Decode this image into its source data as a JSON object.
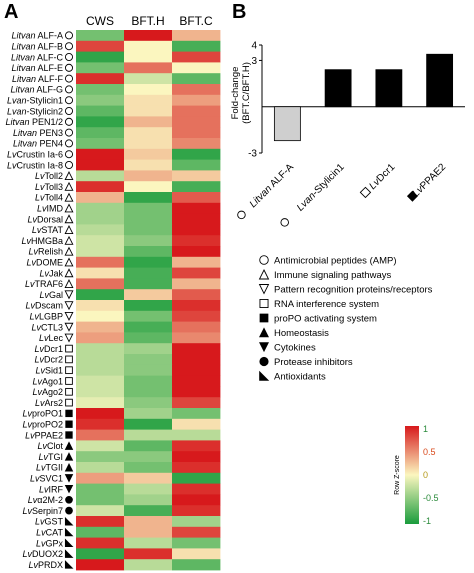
{
  "panel_labels": {
    "a": "A",
    "b": "B"
  },
  "chart_data": [
    {
      "type": "heatmap",
      "columns": [
        "CWS",
        "BFT.H",
        "BFT.C"
      ],
      "rows": [
        {
          "prefix": "Litvan",
          "name": " ALF-A",
          "icon": "circle",
          "values": [
            -0.6,
            1.0,
            0.3
          ]
        },
        {
          "prefix": "Litvan",
          "name": " ALF-B",
          "icon": "circle",
          "values": [
            0.8,
            0.0,
            -0.8
          ]
        },
        {
          "prefix": "Litvan",
          "name": " ALF-C",
          "icon": "circle",
          "values": [
            -0.9,
            0.0,
            0.8
          ]
        },
        {
          "prefix": "Litvan",
          "name": " ALF-E",
          "icon": "circle",
          "values": [
            -0.6,
            0.6,
            0.0
          ]
        },
        {
          "prefix": "Litvan",
          "name": " ALF-F",
          "icon": "circle",
          "values": [
            0.9,
            -0.2,
            -0.7
          ]
        },
        {
          "prefix": "Litvan",
          "name": " ALF-G",
          "icon": "circle",
          "values": [
            -0.6,
            0.0,
            0.6
          ]
        },
        {
          "prefix": "Lvan",
          "name": "-Stylicin1",
          "icon": "circle",
          "values": [
            -0.5,
            0.1,
            0.4
          ]
        },
        {
          "prefix": "Lvan",
          "name": "-Stylicin2",
          "icon": "circle",
          "values": [
            -0.7,
            0.1,
            0.6
          ]
        },
        {
          "prefix": "Litvan",
          "name": " PEN1/2",
          "icon": "circle",
          "values": [
            -0.9,
            0.3,
            0.6
          ]
        },
        {
          "prefix": "Litvan",
          "name": " PEN3",
          "icon": "circle",
          "values": [
            -0.7,
            0.1,
            0.6
          ]
        },
        {
          "prefix": "Litvan",
          "name": " PEN4",
          "icon": "circle",
          "values": [
            -0.6,
            0.1,
            0.5
          ]
        },
        {
          "prefix": "Lv",
          "name": "Crustin Ia-6",
          "icon": "circle",
          "values": [
            1.0,
            0.2,
            -0.9
          ]
        },
        {
          "prefix": "Lv",
          "name": "Crustin Ia-8",
          "icon": "circle",
          "values": [
            1.0,
            0.1,
            -0.7
          ]
        },
        {
          "prefix": "Lv",
          "name": "Toll2",
          "icon": "triangle-up",
          "values": [
            -0.3,
            0.3,
            0.2
          ]
        },
        {
          "prefix": "Lv",
          "name": "Toll3",
          "icon": "triangle-up",
          "values": [
            0.9,
            0.0,
            -0.8
          ]
        },
        {
          "prefix": "Lv",
          "name": "Toll4",
          "icon": "triangle-up",
          "values": [
            0.3,
            -0.9,
            0.7
          ]
        },
        {
          "prefix": "Lv",
          "name": "IMD",
          "icon": "triangle-up",
          "values": [
            -0.4,
            -0.6,
            1.0
          ]
        },
        {
          "prefix": "Lv",
          "name": "Dorsal",
          "icon": "triangle-up",
          "values": [
            -0.4,
            -0.6,
            1.0
          ]
        },
        {
          "prefix": "Lv",
          "name": "STAT",
          "icon": "triangle-up",
          "values": [
            -0.3,
            -0.6,
            1.0
          ]
        },
        {
          "prefix": "Lv",
          "name": "HMGBa",
          "icon": "triangle-up",
          "values": [
            -0.2,
            -0.5,
            0.9
          ]
        },
        {
          "prefix": "Lv",
          "name": "Relish",
          "icon": "triangle-up",
          "values": [
            -0.2,
            -0.7,
            1.0
          ]
        },
        {
          "prefix": "Lv",
          "name": "DOME",
          "icon": "triangle-up",
          "values": [
            0.6,
            -0.9,
            0.3
          ]
        },
        {
          "prefix": "Lv",
          "name": "Jak",
          "icon": "triangle-up",
          "values": [
            0.1,
            -0.8,
            0.8
          ]
        },
        {
          "prefix": "Lv",
          "name": "TRAF6",
          "icon": "triangle-up",
          "values": [
            0.6,
            -0.8,
            0.3
          ]
        },
        {
          "prefix": "Lv",
          "name": "Gal",
          "icon": "triangle-down",
          "values": [
            -0.9,
            0.2,
            0.7
          ]
        },
        {
          "prefix": "Lv",
          "name": "Dscam",
          "icon": "triangle-down",
          "values": [
            0.1,
            -0.9,
            0.9
          ]
        },
        {
          "prefix": "Lv",
          "name": "LGBP",
          "icon": "triangle-down",
          "values": [
            0.0,
            -0.6,
            0.8
          ]
        },
        {
          "prefix": "Lv",
          "name": "CTL3",
          "icon": "triangle-down",
          "values": [
            0.3,
            -0.8,
            0.6
          ]
        },
        {
          "prefix": "Lv",
          "name": "Lec",
          "icon": "triangle-down",
          "values": [
            0.4,
            -0.7,
            0.5
          ]
        },
        {
          "prefix": "Lv",
          "name": "Dcr1",
          "icon": "square-open",
          "values": [
            -0.3,
            -0.4,
            1.0
          ]
        },
        {
          "prefix": "Lv",
          "name": "Dcr2",
          "icon": "square-open",
          "values": [
            -0.3,
            -0.5,
            1.0
          ]
        },
        {
          "prefix": "Lv",
          "name": "Sid1",
          "icon": "square-open",
          "values": [
            -0.3,
            -0.5,
            1.0
          ]
        },
        {
          "prefix": "Lv",
          "name": "Ago1",
          "icon": "square-open",
          "values": [
            -0.2,
            -0.6,
            1.0
          ]
        },
        {
          "prefix": "Lv",
          "name": "Ago2",
          "icon": "square-open",
          "values": [
            -0.2,
            -0.6,
            1.0
          ]
        },
        {
          "prefix": "Lv",
          "name": "Ars2",
          "icon": "square-open",
          "values": [
            -0.1,
            -0.5,
            0.8
          ]
        },
        {
          "prefix": "Lv",
          "name": "proPO1",
          "icon": "square-filled",
          "values": [
            1.0,
            -0.4,
            -0.6
          ]
        },
        {
          "prefix": "Lv",
          "name": "proPO2",
          "icon": "square-filled",
          "values": [
            0.9,
            -0.9,
            0.1
          ]
        },
        {
          "prefix": "Lv",
          "name": "PPAE2",
          "icon": "square-filled",
          "values": [
            0.6,
            -0.3,
            -0.3
          ]
        },
        {
          "prefix": "Lv",
          "name": "Clot",
          "icon": "triangle-up-filled",
          "values": [
            -0.2,
            -0.7,
            0.9
          ]
        },
        {
          "prefix": "Lv",
          "name": "TGI",
          "icon": "triangle-up-filled",
          "values": [
            -0.5,
            -0.5,
            1.0
          ]
        },
        {
          "prefix": "Lv",
          "name": "TGII",
          "icon": "triangle-up-filled",
          "values": [
            -0.3,
            -0.6,
            0.9
          ]
        },
        {
          "prefix": "Lv",
          "name": "SVC1",
          "icon": "triangle-down-filled",
          "values": [
            0.4,
            0.2,
            -0.9
          ]
        },
        {
          "prefix": "Lv",
          "name": "IRF",
          "icon": "triangle-down-filled",
          "values": [
            -0.6,
            -0.3,
            0.9
          ]
        },
        {
          "prefix": "Lv",
          "name": "α2M-2",
          "icon": "circle-filled",
          "values": [
            -0.6,
            -0.4,
            1.0
          ]
        },
        {
          "prefix": "Lv",
          "name": "Serpin7",
          "icon": "circle-filled",
          "values": [
            -0.2,
            -0.8,
            0.9
          ]
        },
        {
          "prefix": "Lv",
          "name": "GST",
          "icon": "right-triangle",
          "values": [
            0.9,
            0.3,
            -0.4
          ]
        },
        {
          "prefix": "Lv",
          "name": "CAT",
          "icon": "right-triangle",
          "values": [
            -0.7,
            0.3,
            0.8
          ]
        },
        {
          "prefix": "Lv",
          "name": "GPx",
          "icon": "right-triangle",
          "values": [
            0.9,
            -0.3,
            -0.6
          ]
        },
        {
          "prefix": "Lv",
          "name": "DUOX2",
          "icon": "right-triangle",
          "values": [
            -0.9,
            0.9,
            0.1
          ]
        },
        {
          "prefix": "Lv",
          "name": "PRDX",
          "icon": "right-triangle",
          "values": [
            1.0,
            -0.3,
            -0.7
          ]
        }
      ],
      "colorscale": {
        "low": "#1a9c3c",
        "mid": "#fbf6bf",
        "high": "#d7191c"
      },
      "colorbar": {
        "title": "Row Z-score",
        "ticks": [
          "1",
          "0.5",
          "0",
          "-0.5",
          "-1"
        ],
        "range": [
          -1,
          1
        ]
      }
    },
    {
      "type": "bar",
      "ylabel": "Fold-change\n(BFT.C/BFT.H)",
      "ylim": [
        -3,
        4
      ],
      "yticks": [
        "4",
        "3",
        "-3"
      ],
      "categories": [
        {
          "prefix": "Litvan",
          "name": " ALF-A",
          "icon": "circle"
        },
        {
          "prefix": "Lvan",
          "name": "-Stylicin1",
          "icon": "circle"
        },
        {
          "prefix": "Lv",
          "name": "Dcr1",
          "icon": "square-open"
        },
        {
          "prefix": "Lv",
          "name": "PPAE2",
          "icon": "square-filled"
        }
      ],
      "values": [
        -2.2,
        2.4,
        2.4,
        3.4
      ],
      "colors": [
        "#cfcfcf",
        "#000000",
        "#000000",
        "#000000"
      ]
    }
  ],
  "legend": [
    {
      "icon": "circle",
      "label": "Antimicrobial peptides (AMP)"
    },
    {
      "icon": "triangle-up",
      "label": "Immune signaling pathways"
    },
    {
      "icon": "triangle-down",
      "label": "Pattern recognition proteins/receptors"
    },
    {
      "icon": "square-open",
      "label": "RNA interference system"
    },
    {
      "icon": "square-filled",
      "label": "proPO activating system"
    },
    {
      "icon": "triangle-up-filled",
      "label": "Homeostasis"
    },
    {
      "icon": "triangle-down-filled",
      "label": "Cytokines"
    },
    {
      "icon": "circle-filled",
      "label": "Protease inhibitors"
    },
    {
      "icon": "right-triangle",
      "label": "Antioxidants"
    }
  ]
}
